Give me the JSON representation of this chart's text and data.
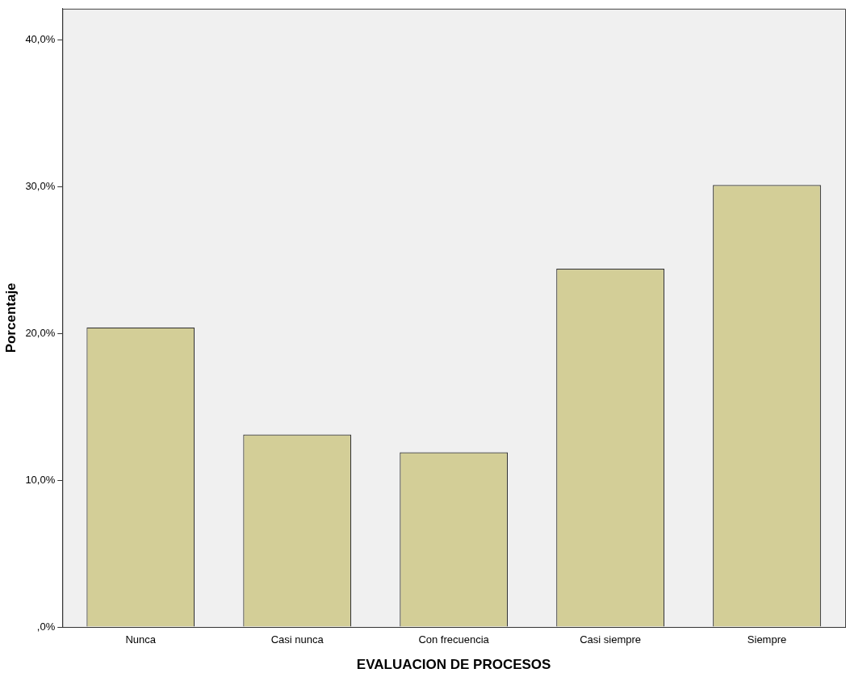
{
  "chart_data": {
    "type": "bar",
    "xlabel": "EVALUACION DE PROCESOS",
    "ylabel": "Porcentaje",
    "categories": [
      "Nunca",
      "Casi nunca",
      "Con frecuencia",
      "Casi siempre",
      "Siempre"
    ],
    "values": [
      20.4,
      13.1,
      11.9,
      24.4,
      30.1
    ],
    "color": "#d3ce97",
    "ylim": [
      0,
      42.1
    ],
    "yticks": [
      {
        "value": 0,
        "label": ",0%"
      },
      {
        "value": 10,
        "label": "10,0%"
      },
      {
        "value": 20,
        "label": "20,0%"
      },
      {
        "value": 30,
        "label": "30,0%"
      },
      {
        "value": 40,
        "label": "40,0%"
      }
    ],
    "grid": false,
    "legend": false
  }
}
